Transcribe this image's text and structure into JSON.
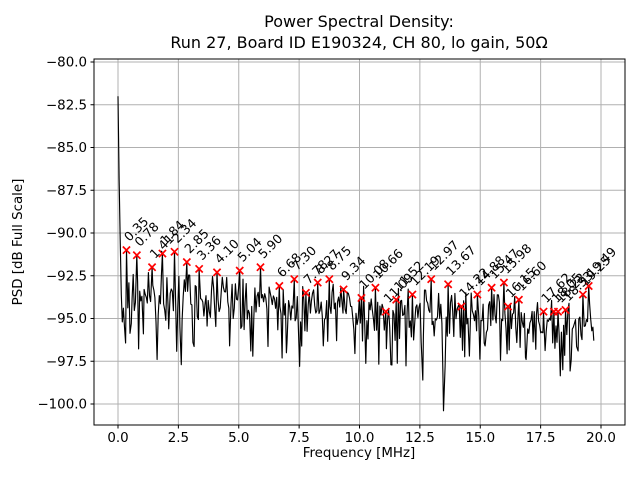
{
  "titles": {
    "line1": "Power Spectral Density:",
    "line2": "Run 27, Board ID E190324, CH 80, lo gain, 50Ω"
  },
  "axis": {
    "x": "Frequency [MHz]",
    "y": "PSD [dB Full Scale]"
  },
  "chart_data": {
    "type": "line",
    "title": "Power Spectral Density: Run 27, Board ID E190324, CH 80, lo gain, 50Ω",
    "xlabel": "Frequency [MHz]",
    "ylabel": "PSD [dB Full Scale]",
    "xlim": [
      -1.0,
      21.0
    ],
    "ylim": [
      -101.2,
      -79.8
    ],
    "xticks": [
      0.0,
      2.5,
      5.0,
      7.5,
      10.0,
      12.5,
      15.0,
      17.5,
      20.0
    ],
    "yticks": [
      -80.0,
      -82.5,
      -85.0,
      -87.5,
      -90.0,
      -92.5,
      -95.0,
      -97.5,
      -100.0
    ],
    "grid": true,
    "grid_color": "#b0b0b0",
    "line_color": "#000000",
    "marker_color": "#ff0000",
    "marker_style": "x",
    "annotation_color": "#000000",
    "legend": "none",
    "start_point": {
      "freq": 0.0,
      "psd": -82.0
    },
    "deep_notch": {
      "freq": 13.48,
      "psd": -100.4
    },
    "noise_floor": {
      "start_db": -93.5,
      "end_db": -95.3,
      "jitter_db": 1.9,
      "seed": 42
    },
    "dips": [
      [
        0.55,
        -95.3
      ],
      [
        1.05,
        -95.9
      ],
      [
        1.62,
        -97.4
      ],
      [
        2.1,
        -95.6
      ],
      [
        2.62,
        -97.7
      ],
      [
        3.1,
        -96.4
      ],
      [
        4.62,
        -96.6
      ],
      [
        5.5,
        -96.9
      ],
      [
        7.0,
        -96.4
      ],
      [
        7.52,
        -97.8
      ],
      [
        8.5,
        -96.6
      ],
      [
        9.05,
        -96.3
      ],
      [
        10.35,
        -96.2
      ],
      [
        11.3,
        -97.7
      ],
      [
        12.62,
        -98.6
      ],
      [
        13.48,
        -100.4
      ],
      [
        14.55,
        -97.2
      ],
      [
        15.2,
        -96.6
      ],
      [
        16.9,
        -97.4
      ],
      [
        17.3,
        -96.8
      ],
      [
        18.42,
        -98.0
      ],
      [
        19.05,
        -96.9
      ],
      [
        19.7,
        -96.3
      ]
    ],
    "peaks": [
      {
        "freq": 0.35,
        "psd": -91.0,
        "label": "0.35"
      },
      {
        "freq": 0.78,
        "psd": -91.3,
        "label": "0.78"
      },
      {
        "freq": 1.41,
        "psd": -92.0,
        "label": "1.41"
      },
      {
        "freq": 1.84,
        "psd": -91.2,
        "label": "1.84"
      },
      {
        "freq": 2.34,
        "psd": -91.1,
        "label": "2.34"
      },
      {
        "freq": 2.85,
        "psd": -91.7,
        "label": "2.85"
      },
      {
        "freq": 3.36,
        "psd": -92.1,
        "label": "3.36"
      },
      {
        "freq": 4.1,
        "psd": -92.3,
        "label": "4.10"
      },
      {
        "freq": 5.04,
        "psd": -92.2,
        "label": "5.04"
      },
      {
        "freq": 5.9,
        "psd": -92.0,
        "label": "5.90"
      },
      {
        "freq": 6.68,
        "psd": -93.1,
        "label": "6.68"
      },
      {
        "freq": 7.3,
        "psd": -92.7,
        "label": "7.30"
      },
      {
        "freq": 7.78,
        "psd": -93.5,
        "label": "7.78"
      },
      {
        "freq": 8.27,
        "psd": -92.9,
        "label": "8.27"
      },
      {
        "freq": 8.75,
        "psd": -92.7,
        "label": "8.75"
      },
      {
        "freq": 9.34,
        "psd": -93.3,
        "label": "9.34"
      },
      {
        "freq": 10.08,
        "psd": -93.8,
        "label": "10.08"
      },
      {
        "freq": 10.66,
        "psd": -93.2,
        "label": "10.66"
      },
      {
        "freq": 11.09,
        "psd": -94.6,
        "label": "11.09"
      },
      {
        "freq": 11.52,
        "psd": -93.9,
        "label": "11.52"
      },
      {
        "freq": 12.19,
        "psd": -93.6,
        "label": "12.19"
      },
      {
        "freq": 12.97,
        "psd": -92.7,
        "label": "12.97"
      },
      {
        "freq": 13.67,
        "psd": -93.0,
        "label": "13.67"
      },
      {
        "freq": 14.22,
        "psd": -94.3,
        "label": "14.22"
      },
      {
        "freq": 14.88,
        "psd": -93.6,
        "label": "14.88"
      },
      {
        "freq": 15.47,
        "psd": -93.2,
        "label": "15.47"
      },
      {
        "freq": 15.98,
        "psd": -92.9,
        "label": "15.98"
      },
      {
        "freq": 16.15,
        "psd": -94.3,
        "label": "16.15"
      },
      {
        "freq": 16.6,
        "psd": -93.9,
        "label": "16.60"
      },
      {
        "freq": 17.62,
        "psd": -94.6,
        "label": "17.62"
      },
      {
        "freq": 18.05,
        "psd": -94.6,
        "label": "18.05"
      },
      {
        "freq": 18.22,
        "psd": -94.6,
        "label": "18.22"
      },
      {
        "freq": 18.53,
        "psd": -94.5,
        "label": "18.53"
      },
      {
        "freq": 19.25,
        "psd": -93.6,
        "label": "19.25"
      },
      {
        "freq": 19.49,
        "psd": -93.1,
        "label": "19.49"
      }
    ]
  }
}
